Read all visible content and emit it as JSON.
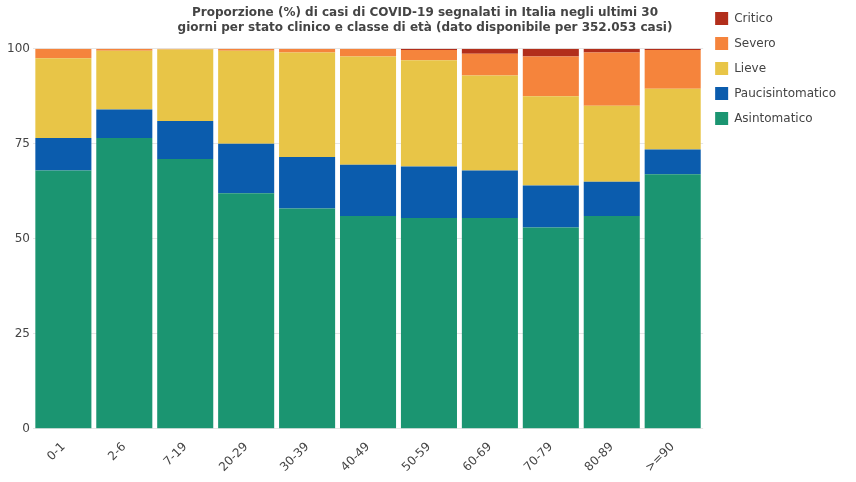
{
  "chart_data": {
    "type": "bar",
    "title": "Proporzione (%) di casi di COVID-19 segnalati in Italia negli ultimi 30 giorni per stato clinico e classe di età (dato disponibile per 352.053 casi)",
    "categories": [
      "0-1",
      "2-6",
      "7-19",
      "20-29",
      "30-39",
      "40-49",
      "50-59",
      "60-69",
      "70-79",
      "80-89",
      ">=90"
    ],
    "series": [
      {
        "name": "Asintomatico",
        "color": "#1b9571",
        "values": [
          68,
          76.5,
          71,
          62,
          58,
          56,
          55.5,
          55.5,
          53,
          56,
          67
        ]
      },
      {
        "name": "Paucisintomatico",
        "color": "#0b5cad",
        "values": [
          8.5,
          7.5,
          10,
          13,
          13.5,
          13.5,
          13.5,
          12.5,
          11,
          9,
          6.5
        ]
      },
      {
        "name": "Lieve",
        "color": "#e8c547",
        "values": [
          21,
          15.5,
          18.8,
          24.5,
          27.5,
          28.5,
          28,
          25,
          23.5,
          20,
          16
        ]
      },
      {
        "name": "Severo",
        "color": "#f5843c",
        "values": [
          2.5,
          0.5,
          0.2,
          0.5,
          1,
          2,
          2.7,
          5.7,
          10.5,
          14,
          10.2
        ]
      },
      {
        "name": "Critico",
        "color": "#b22e1b",
        "values": [
          0,
          0,
          0,
          0,
          0,
          0,
          0.3,
          1.3,
          2,
          1,
          0.3
        ]
      }
    ],
    "ylim": [
      0,
      100
    ],
    "yticks": [
      0,
      25,
      50,
      75,
      100
    ],
    "grid": true,
    "stacked": true,
    "legend": "right",
    "data_labels": false
  }
}
